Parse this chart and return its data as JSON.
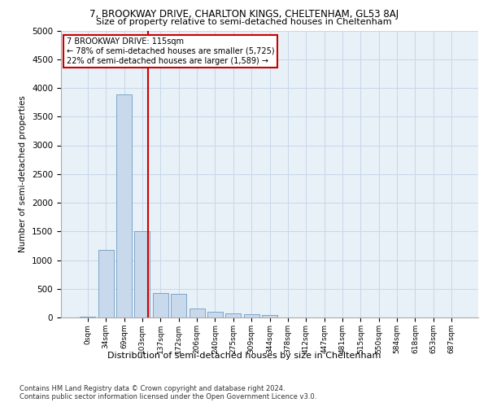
{
  "title_line1": "7, BROOKWAY DRIVE, CHARLTON KINGS, CHELTENHAM, GL53 8AJ",
  "title_line2": "Size of property relative to semi-detached houses in Cheltenham",
  "xlabel": "Distribution of semi-detached houses by size in Cheltenham",
  "ylabel": "Number of semi-detached properties",
  "footer_line1": "Contains HM Land Registry data © Crown copyright and database right 2024.",
  "footer_line2": "Contains public sector information licensed under the Open Government Licence v3.0.",
  "bar_labels": [
    "0sqm",
    "34sqm",
    "69sqm",
    "103sqm",
    "137sqm",
    "172sqm",
    "206sqm",
    "240sqm",
    "275sqm",
    "309sqm",
    "344sqm",
    "378sqm",
    "412sqm",
    "447sqm",
    "481sqm",
    "515sqm",
    "550sqm",
    "584sqm",
    "618sqm",
    "653sqm",
    "687sqm"
  ],
  "bar_values": [
    20,
    1180,
    3880,
    1510,
    420,
    410,
    160,
    100,
    70,
    55,
    40,
    0,
    0,
    0,
    0,
    0,
    0,
    0,
    0,
    0,
    0
  ],
  "bar_color": "#c9d9ec",
  "bar_edge_color": "#5b8db8",
  "ylim": [
    0,
    5000
  ],
  "yticks": [
    0,
    500,
    1000,
    1500,
    2000,
    2500,
    3000,
    3500,
    4000,
    4500,
    5000
  ],
  "property_line_x": 3.3,
  "annotation_text_line1": "7 BROOKWAY DRIVE: 115sqm",
  "annotation_text_line2": "← 78% of semi-detached houses are smaller (5,725)",
  "annotation_text_line3": "22% of semi-detached houses are larger (1,589) →",
  "annotation_box_color": "#ffffff",
  "annotation_box_edge": "#cc0000",
  "property_line_color": "#cc0000",
  "grid_color": "#c8d8e8",
  "bg_color": "#e8f0f8"
}
